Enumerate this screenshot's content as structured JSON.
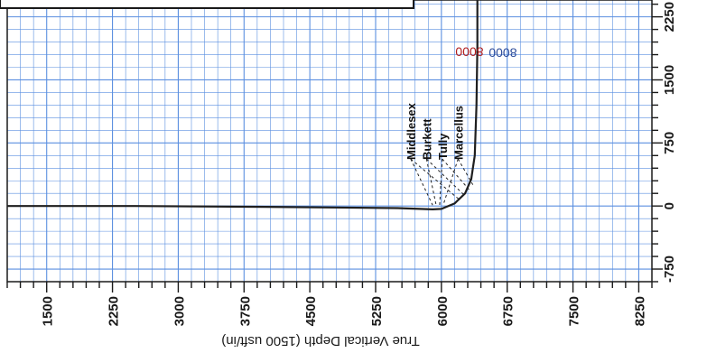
{
  "chart_data": {
    "type": "line",
    "xlabel": "True Vertical Depth (1500 usft/in)",
    "ylabel": "",
    "x_ticks": [
      "1500",
      "2250",
      "3000",
      "3750",
      "4500",
      "5250",
      "6000",
      "6750",
      "7500",
      "8250"
    ],
    "y_ticks": [
      "-750",
      "0",
      "750",
      "1500",
      "2250"
    ],
    "xlim": [
      1050,
      8400
    ],
    "ylim": [
      -900,
      2450
    ],
    "grid": true,
    "series": [
      {
        "color": "#1f1f1f",
        "x": [
          1050,
          2500,
          4000,
          5500,
          5900,
          6000,
          6150,
          6270,
          6340,
          6380,
          6400,
          6410,
          6410
        ],
        "y": [
          0,
          0,
          -10,
          -25,
          -40,
          -35,
          30,
          150,
          320,
          600,
          1200,
          1900,
          2450
        ]
      }
    ],
    "formation_markers": [
      {
        "label": "Middlesex",
        "x": 6200,
        "y": 80
      },
      {
        "label": "Burkett",
        "x": 6260,
        "y": 130
      },
      {
        "label": "Tully",
        "x": 6320,
        "y": 190
      },
      {
        "label": "Marcellus",
        "x": 6360,
        "y": 250
      }
    ],
    "annotations": [
      {
        "text": "8000",
        "x": 6320,
        "y": 1780,
        "color": "#b01c1c"
      },
      {
        "text": "8000",
        "x": 6700,
        "y": 1770,
        "color": "#2a4a9a"
      }
    ],
    "colors": {
      "grid": "#5b8fe0",
      "axis": "#1a1a1a",
      "curve": "#1f1f1f"
    }
  }
}
